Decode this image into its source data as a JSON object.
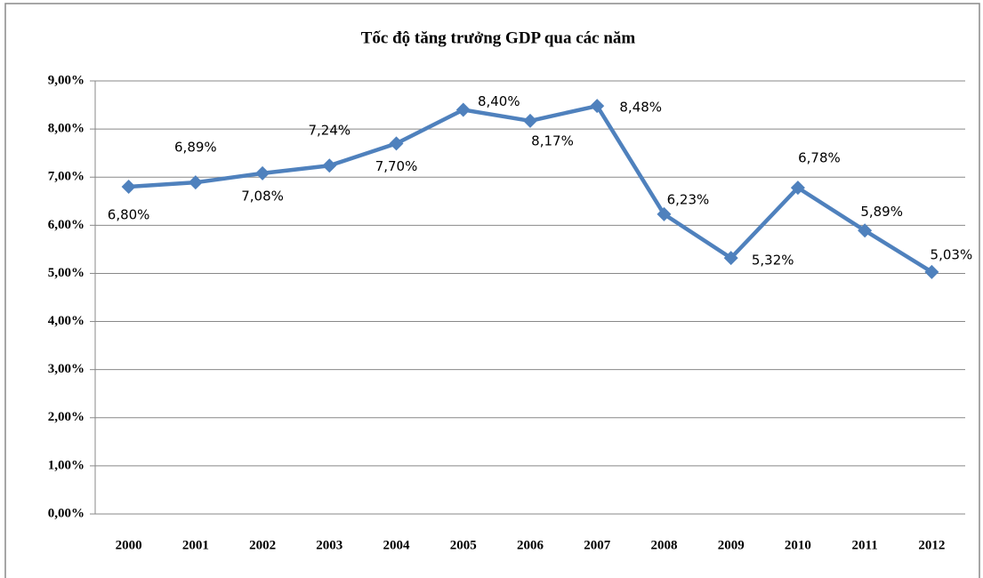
{
  "chart_data": {
    "type": "line",
    "title": "Tốc độ tăng trưởng GDP qua các năm",
    "categories": [
      "2000",
      "2001",
      "2002",
      "2003",
      "2004",
      "2005",
      "2006",
      "2007",
      "2008",
      "2009",
      "2010",
      "2011",
      "2012"
    ],
    "series": [
      {
        "name": "GDP",
        "color": "#4f81bd",
        "values": [
          6.8,
          6.89,
          7.08,
          7.24,
          7.7,
          8.4,
          8.17,
          8.48,
          6.23,
          5.32,
          6.78,
          5.89,
          5.03
        ],
        "value_labels": [
          "6,80%",
          "6,89%",
          "7,08%",
          "7,24%",
          "7,70%",
          "8,40%",
          "8,17%",
          "8,48%",
          "6,23%",
          "5,32%",
          "6,78%",
          "5,89%",
          "5,03%"
        ]
      }
    ],
    "ylim": [
      0,
      9
    ],
    "yticks": [
      {
        "value": 0,
        "label": "0,00%"
      },
      {
        "value": 1,
        "label": "1,00%"
      },
      {
        "value": 2,
        "label": "2,00%"
      },
      {
        "value": 3,
        "label": "3,00%"
      },
      {
        "value": 4,
        "label": "4,00%"
      },
      {
        "value": 5,
        "label": "5,00%"
      },
      {
        "value": 6,
        "label": "6,00%"
      },
      {
        "value": 7,
        "label": "7,00%"
      },
      {
        "value": 8,
        "label": "8,00%"
      },
      {
        "value": 9,
        "label": "9,00%"
      }
    ],
    "grid": true
  }
}
